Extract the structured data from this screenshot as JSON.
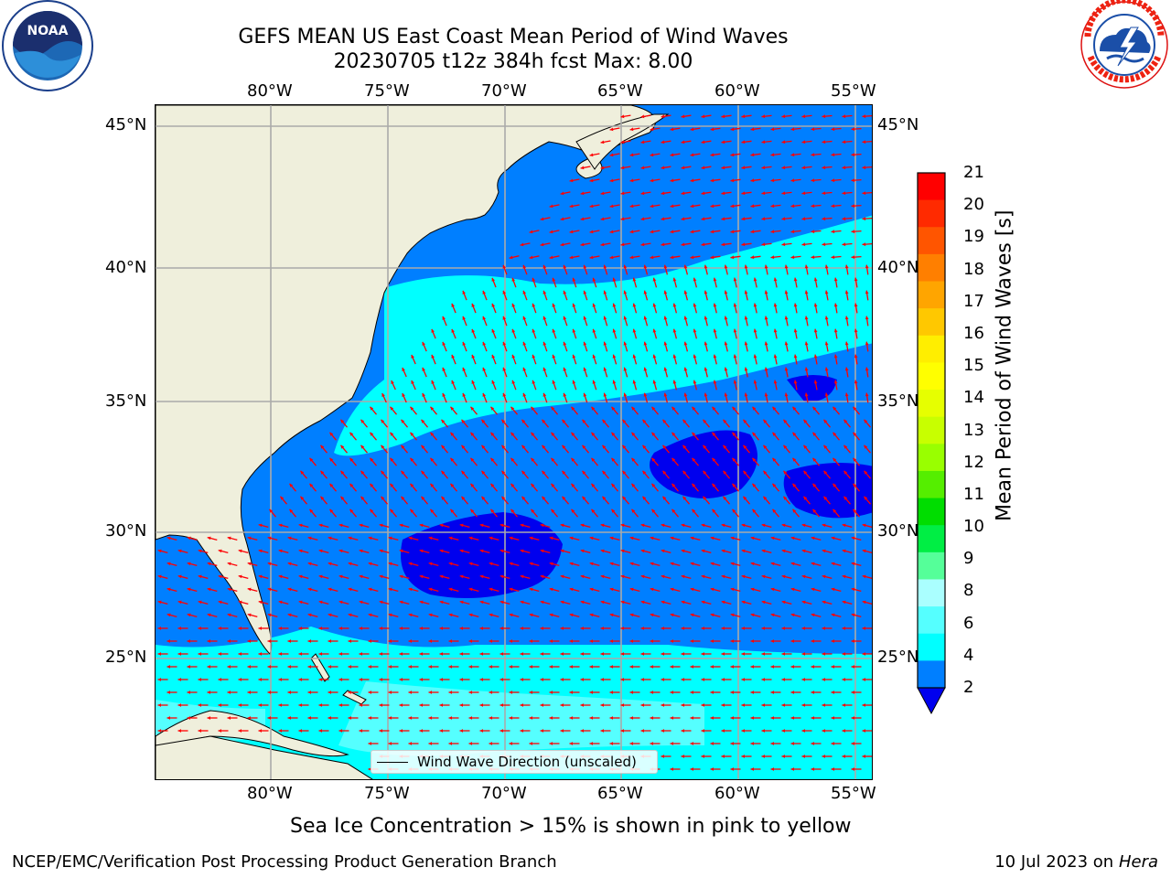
{
  "header": {
    "title_line1": "GEFS MEAN US East Coast Mean Period of Wind Waves",
    "title_line2": "20230705 t12z 384h fcst   Max: 8.00"
  },
  "map": {
    "lon_labels": [
      "80°W",
      "75°W",
      "70°W",
      "65°W",
      "60°W",
      "55°W"
    ],
    "lat_labels": [
      "45°N",
      "40°N",
      "35°N",
      "30°N",
      "25°N"
    ],
    "legend_label": "Wind Wave Direction (unscaled)",
    "land_color": "#efefdc",
    "arrow_color": "#ff0000"
  },
  "colorbar": {
    "title": "Mean Period of Wind Waves [s]",
    "ticks": [
      "21",
      "20",
      "19",
      "18",
      "17",
      "16",
      "15",
      "14",
      "13",
      "12",
      "11",
      "10",
      "9",
      "8",
      "6",
      "4",
      "2"
    ],
    "colors": [
      "#ff0000",
      "#ff2a00",
      "#ff5500",
      "#ff7f00",
      "#ffa500",
      "#ffc800",
      "#ffee00",
      "#ffff00",
      "#e6ff00",
      "#c8ff00",
      "#99ff00",
      "#55ee00",
      "#00dd00",
      "#00ee44",
      "#55ff99",
      "#aaffff",
      "#55ffff",
      "#00ffff",
      "#007fff",
      "#0000ee"
    ]
  },
  "footer": {
    "sea_ice_note": "Sea Ice Concentration > 15% is shown in pink to yellow",
    "credit": "NCEP/EMC/Verification Post Processing Product Generation Branch",
    "date": "10 Jul 2023 on",
    "host": "Hera"
  },
  "logos": {
    "noaa_text": "NOAA",
    "noaa_ring": "NATIONAL OCEANIC AND ATMOSPHERIC ADMINISTRATION · U.S. DEPARTMENT OF COMMERCE",
    "nws_ring": "NATIONAL WEATHER SERVICE"
  }
}
